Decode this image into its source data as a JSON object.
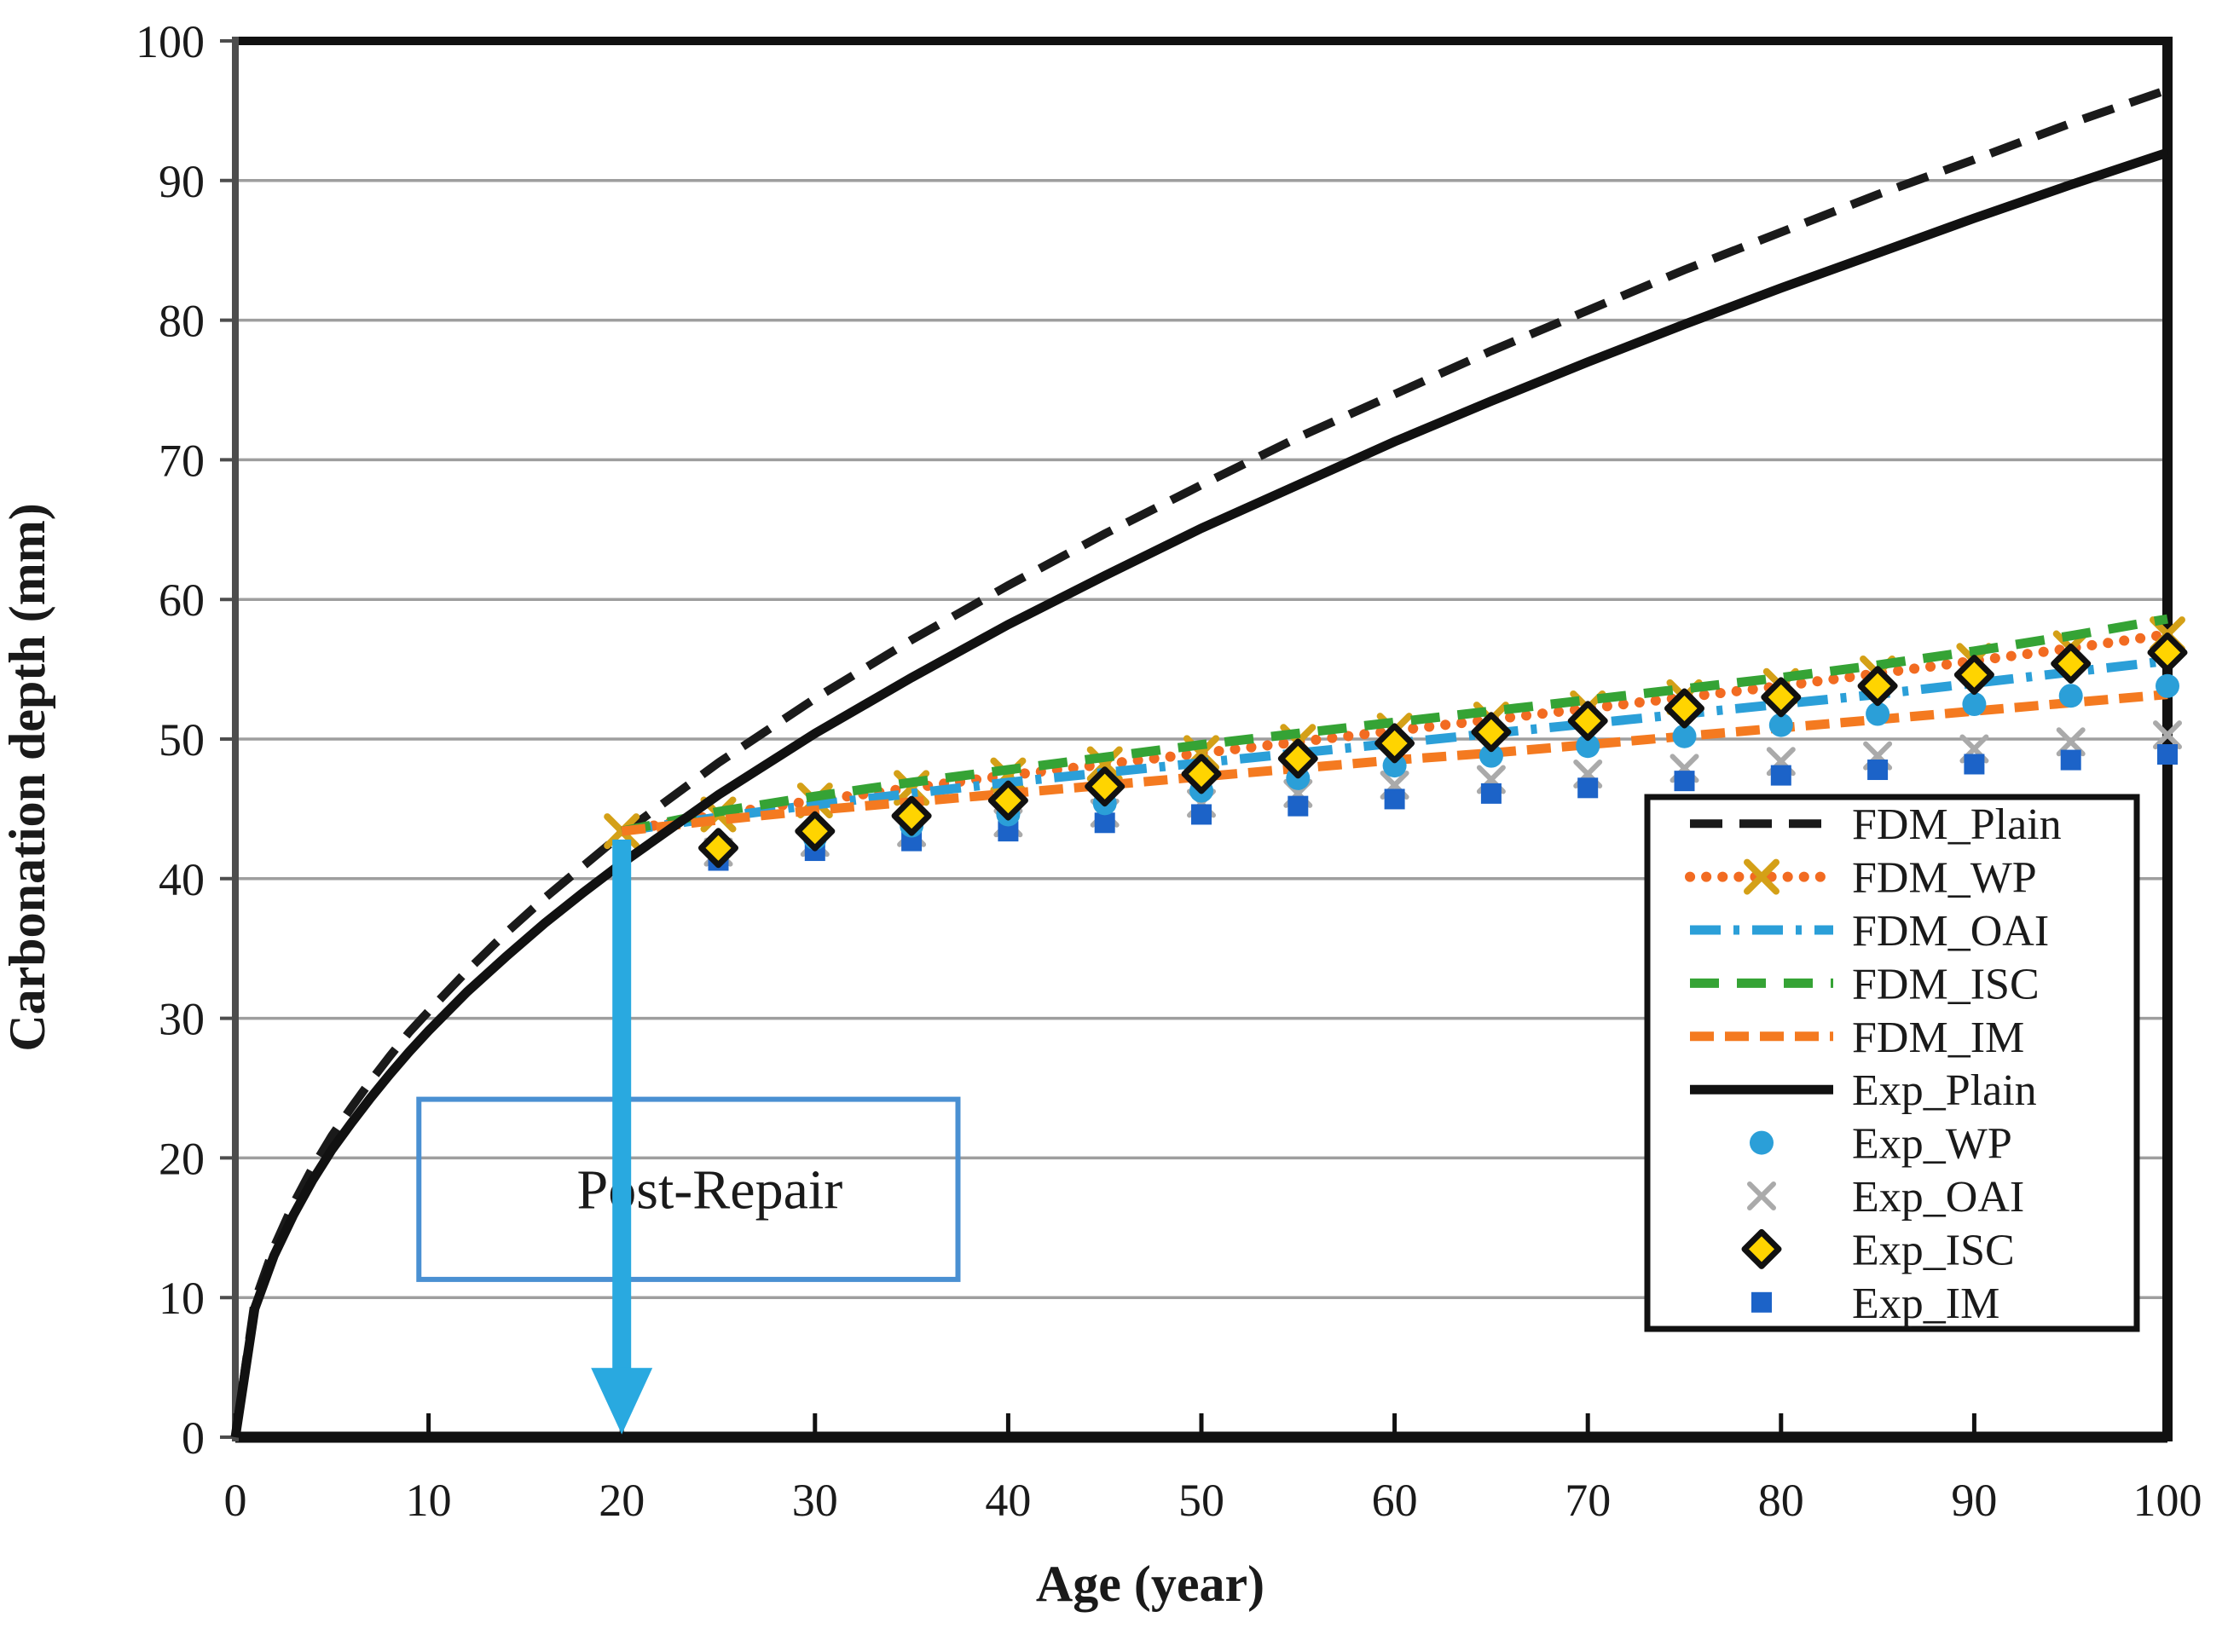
{
  "figure": {
    "kind": "scientific line chart",
    "background": "#ffffff"
  },
  "chart_data": {
    "type": "line",
    "title": "",
    "xlabel": "Age (year)",
    "ylabel": "Carbonation depth (mm)",
    "xlim": [
      0,
      100
    ],
    "ylim": [
      0,
      100
    ],
    "x_ticks": [
      0,
      10,
      20,
      30,
      40,
      50,
      60,
      70,
      80,
      90,
      100
    ],
    "y_ticks": [
      0,
      10,
      20,
      30,
      40,
      50,
      60,
      70,
      80,
      90,
      100
    ],
    "grid": "horizontal-major",
    "gridline_color": "#9e9e9e",
    "legend_position": "inside-lower-right",
    "series": [
      {
        "name": "FDM_Plain",
        "kind": "line",
        "style": "dashed",
        "color": "#1a1a1a",
        "x": [
          0,
          1,
          2,
          3,
          4,
          5,
          6,
          7,
          8,
          9,
          10,
          12,
          14,
          16,
          18,
          20,
          25,
          30,
          35,
          40,
          45,
          50,
          55,
          60,
          65,
          70,
          75,
          80,
          85,
          90,
          95,
          100
        ],
        "y": [
          0,
          9.7,
          13.6,
          16.7,
          19.3,
          21.6,
          23.6,
          25.5,
          27.3,
          29.0,
          30.5,
          33.4,
          36.1,
          38.6,
          40.9,
          43.2,
          48.3,
          52.9,
          57.1,
          61.0,
          64.7,
          68.2,
          71.6,
          74.7,
          77.8,
          80.7,
          83.6,
          86.3,
          89.0,
          91.5,
          94.1,
          96.5
        ]
      },
      {
        "name": "FDM_WP",
        "kind": "line",
        "style": "dotted",
        "color": "#f26b21",
        "marker": "x-gold",
        "marker_color": "#d4a017",
        "x": [
          20,
          25,
          30,
          35,
          40,
          45,
          50,
          55,
          60,
          65,
          70,
          75,
          80,
          85,
          90,
          95,
          100
        ],
        "y": [
          43.4,
          44.6,
          45.6,
          46.5,
          47.4,
          48.2,
          49.0,
          49.8,
          50.6,
          51.4,
          52.2,
          53.0,
          53.8,
          54.7,
          55.6,
          56.5,
          57.5
        ]
      },
      {
        "name": "FDM_OAI",
        "kind": "line",
        "style": "dashdot",
        "color": "#2b9fd8",
        "x": [
          20,
          25,
          30,
          35,
          40,
          45,
          50,
          55,
          60,
          65,
          70,
          75,
          80,
          85,
          90,
          95,
          100
        ],
        "y": [
          43.4,
          44.4,
          45.3,
          46.1,
          46.9,
          47.6,
          48.3,
          49.0,
          49.7,
          50.4,
          51.1,
          51.8,
          52.5,
          53.2,
          54.0,
          54.8,
          55.6
        ]
      },
      {
        "name": "FDM_ISC",
        "kind": "line",
        "style": "longdash",
        "color": "#35a335",
        "x": [
          20,
          25,
          30,
          35,
          40,
          45,
          50,
          55,
          60,
          65,
          70,
          75,
          80,
          85,
          90,
          95,
          100
        ],
        "y": [
          43.4,
          44.8,
          45.9,
          46.9,
          47.8,
          48.7,
          49.6,
          50.4,
          51.2,
          52.0,
          52.8,
          53.6,
          54.4,
          55.3,
          56.3,
          57.4,
          58.6
        ]
      },
      {
        "name": "FDM_IM",
        "kind": "line",
        "style": "middash",
        "color": "#f47a20",
        "x": [
          20,
          25,
          30,
          35,
          40,
          45,
          50,
          55,
          60,
          65,
          70,
          75,
          80,
          85,
          90,
          95,
          100
        ],
        "y": [
          43.4,
          44.2,
          44.9,
          45.5,
          46.1,
          46.7,
          47.3,
          47.9,
          48.5,
          49.0,
          49.6,
          50.2,
          50.8,
          51.4,
          52.0,
          52.6,
          53.2
        ]
      },
      {
        "name": "Exp_Plain",
        "kind": "line",
        "style": "solid",
        "color": "#111111",
        "x": [
          0,
          1,
          2,
          3,
          4,
          5,
          6,
          7,
          8,
          9,
          10,
          12,
          14,
          16,
          18,
          20,
          25,
          30,
          35,
          40,
          45,
          50,
          55,
          60,
          65,
          70,
          75,
          80,
          85,
          90,
          95,
          100
        ],
        "y": [
          0,
          9.2,
          13.0,
          15.9,
          18.4,
          20.6,
          22.5,
          24.3,
          26.0,
          27.6,
          29.1,
          31.9,
          34.4,
          36.8,
          39.0,
          41.1,
          46.0,
          50.4,
          54.4,
          58.2,
          61.7,
          65.1,
          68.2,
          71.3,
          74.2,
          77.0,
          79.7,
          82.3,
          84.8,
          87.3,
          89.7,
          92.0
        ]
      },
      {
        "name": "Exp_WP",
        "kind": "scatter",
        "marker": "circle",
        "color": "#2b9fd8",
        "x": [
          25,
          30,
          35,
          40,
          45,
          50,
          55,
          60,
          65,
          70,
          75,
          80,
          85,
          90,
          95,
          100
        ],
        "y": [
          42.0,
          42.9,
          43.8,
          44.6,
          45.4,
          46.3,
          47.2,
          48.1,
          48.8,
          49.5,
          50.2,
          51.0,
          51.8,
          52.5,
          53.1,
          53.8
        ]
      },
      {
        "name": "Exp_OAI",
        "kind": "scatter",
        "marker": "x-gray",
        "color": "#aaaaaa",
        "x": [
          25,
          30,
          35,
          40,
          45,
          50,
          55,
          60,
          65,
          70,
          75,
          80,
          85,
          90,
          95,
          100
        ],
        "y": [
          41.9,
          42.6,
          43.3,
          44.0,
          44.7,
          45.4,
          46.1,
          46.7,
          47.1,
          47.5,
          47.9,
          48.4,
          48.8,
          49.3,
          49.8,
          50.3
        ]
      },
      {
        "name": "Exp_ISC",
        "kind": "scatter",
        "marker": "diamond",
        "color": "#ffd400",
        "edge_color": "#111111",
        "x": [
          25,
          30,
          35,
          40,
          45,
          50,
          55,
          60,
          65,
          70,
          75,
          80,
          85,
          90,
          95,
          100
        ],
        "y": [
          42.2,
          43.4,
          44.5,
          45.6,
          46.6,
          47.5,
          48.6,
          49.7,
          50.5,
          51.3,
          52.2,
          53.0,
          53.8,
          54.6,
          55.4,
          56.2
        ]
      },
      {
        "name": "Exp_IM",
        "kind": "scatter",
        "marker": "square",
        "color": "#1c63c8",
        "x": [
          25,
          30,
          35,
          40,
          45,
          50,
          55,
          60,
          65,
          70,
          75,
          80,
          85,
          90,
          95,
          100
        ],
        "y": [
          41.3,
          42.0,
          42.7,
          43.4,
          44.0,
          44.6,
          45.2,
          45.7,
          46.1,
          46.5,
          47.0,
          47.4,
          47.8,
          48.2,
          48.5,
          48.9
        ]
      }
    ],
    "legend": [
      "FDM_Plain",
      "FDM_WP",
      "FDM_OAI",
      "FDM_ISC",
      "FDM_IM",
      "Exp_Plain",
      "Exp_WP",
      "Exp_OAI",
      "Exp_ISC",
      "Exp_IM"
    ],
    "annotation": {
      "text": "Post-Repair",
      "box_x": [
        9.5,
        37.4
      ],
      "box_y": [
        11.3,
        24.2
      ],
      "border_color": "#4a90d2"
    },
    "arrow": {
      "x": 20,
      "y_from": 42.8,
      "y_to": 0.2,
      "color": "#29a9e0",
      "meaning": "repair applied at age 20 years"
    }
  }
}
